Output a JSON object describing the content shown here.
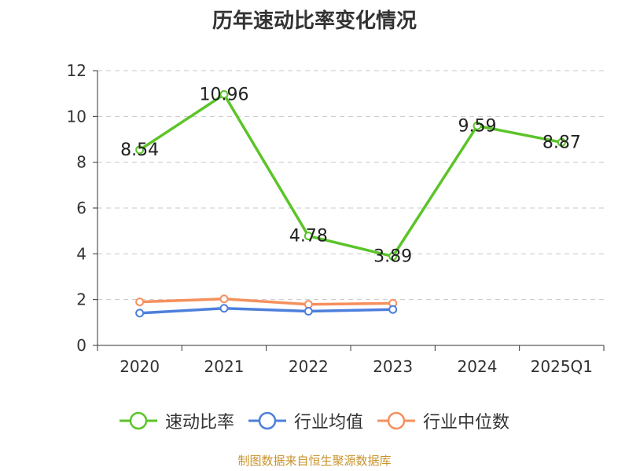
{
  "chart_data": {
    "type": "line",
    "title": "历年速动比率变化情况",
    "categories": [
      "2020",
      "2021",
      "2022",
      "2023",
      "2024",
      "2025Q1"
    ],
    "ylim": [
      0,
      12
    ],
    "yticks": [
      0,
      2,
      4,
      6,
      8,
      10,
      12
    ],
    "grid": true,
    "legend_position": "bottom",
    "series": [
      {
        "name": "速动比率",
        "color": "#5bc429",
        "values": [
          8.54,
          10.96,
          4.78,
          3.89,
          9.59,
          8.87
        ],
        "labels": [
          "8.54",
          "10.96",
          "4.78",
          "3.89",
          "9.59",
          "8.87"
        ]
      },
      {
        "name": "行业均值",
        "color": "#4d7fdc",
        "values": [
          1.41,
          1.62,
          1.49,
          1.57,
          null,
          null
        ]
      },
      {
        "name": "行业中位数",
        "color": "#f5905d",
        "values": [
          1.9,
          2.03,
          1.79,
          1.84,
          null,
          null
        ]
      }
    ]
  },
  "footer": {
    "source": "制图数据来自恒生聚源数据库"
  }
}
